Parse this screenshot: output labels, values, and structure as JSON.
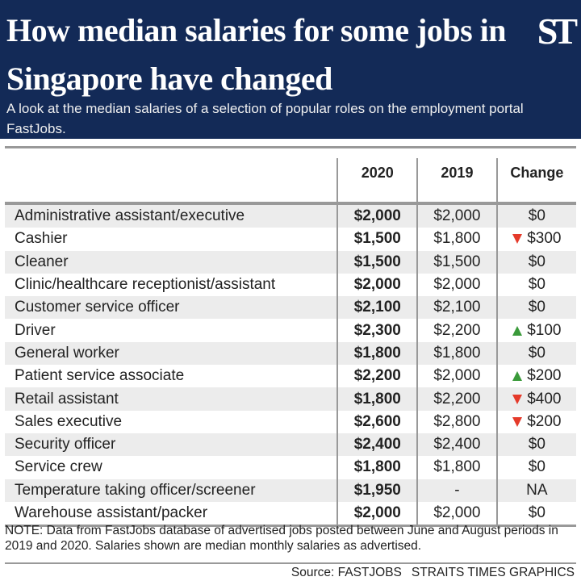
{
  "header": {
    "title": "How median salaries for some jobs in Singapore have changed",
    "logo": "ST",
    "subtitle": "A look at the median salaries of a selection of popular roles on the employment portal FastJobs."
  },
  "table": {
    "columns": [
      "",
      "2020",
      "2019",
      "Change"
    ],
    "rows": [
      {
        "job": "Administrative assistant/executive",
        "y2020": "$2,000",
        "y2019": "$2,000",
        "change": "$0",
        "direction": "none"
      },
      {
        "job": "Cashier",
        "y2020": "$1,500",
        "y2019": "$1,800",
        "change": "$300",
        "direction": "down"
      },
      {
        "job": "Cleaner",
        "y2020": "$1,500",
        "y2019": "$1,500",
        "change": "$0",
        "direction": "none"
      },
      {
        "job": "Clinic/healthcare receptionist/assistant",
        "y2020": "$2,000",
        "y2019": "$2,000",
        "change": "$0",
        "direction": "none"
      },
      {
        "job": "Customer service officer",
        "y2020": "$2,100",
        "y2019": "$2,100",
        "change": "$0",
        "direction": "none"
      },
      {
        "job": "Driver",
        "y2020": "$2,300",
        "y2019": "$2,200",
        "change": "$100",
        "direction": "up"
      },
      {
        "job": "General worker",
        "y2020": "$1,800",
        "y2019": "$1,800",
        "change": "$0",
        "direction": "none"
      },
      {
        "job": "Patient service associate",
        "y2020": "$2,200",
        "y2019": "$2,000",
        "change": "$200",
        "direction": "up"
      },
      {
        "job": "Retail assistant",
        "y2020": "$1,800",
        "y2019": "$2,200",
        "change": "$400",
        "direction": "down"
      },
      {
        "job": "Sales executive",
        "y2020": "$2,600",
        "y2019": "$2,800",
        "change": "$200",
        "direction": "down"
      },
      {
        "job": "Security officer",
        "y2020": "$2,400",
        "y2019": "$2,400",
        "change": "$0",
        "direction": "none"
      },
      {
        "job": "Service crew",
        "y2020": "$1,800",
        "y2019": "$1,800",
        "change": "$0",
        "direction": "none"
      },
      {
        "job": "Temperature taking officer/screener",
        "y2020": "$1,950",
        "y2019": "-",
        "change": "NA",
        "direction": "none"
      },
      {
        "job": "Warehouse assistant/packer",
        "y2020": "$2,000",
        "y2019": "$2,000",
        "change": "$0",
        "direction": "none"
      }
    ]
  },
  "colors": {
    "header_bg": "#132a57",
    "down": "#e53a2a",
    "up": "#3a9a3a",
    "stripe": "#ececec"
  },
  "footer": {
    "note": "NOTE: Data from FastJobs database of advertised jobs posted between June and August periods in 2019 and 2020. Salaries shown are median monthly salaries as advertised.",
    "source": "Source: FASTJOBS",
    "credit": "STRAITS TIMES GRAPHICS"
  }
}
